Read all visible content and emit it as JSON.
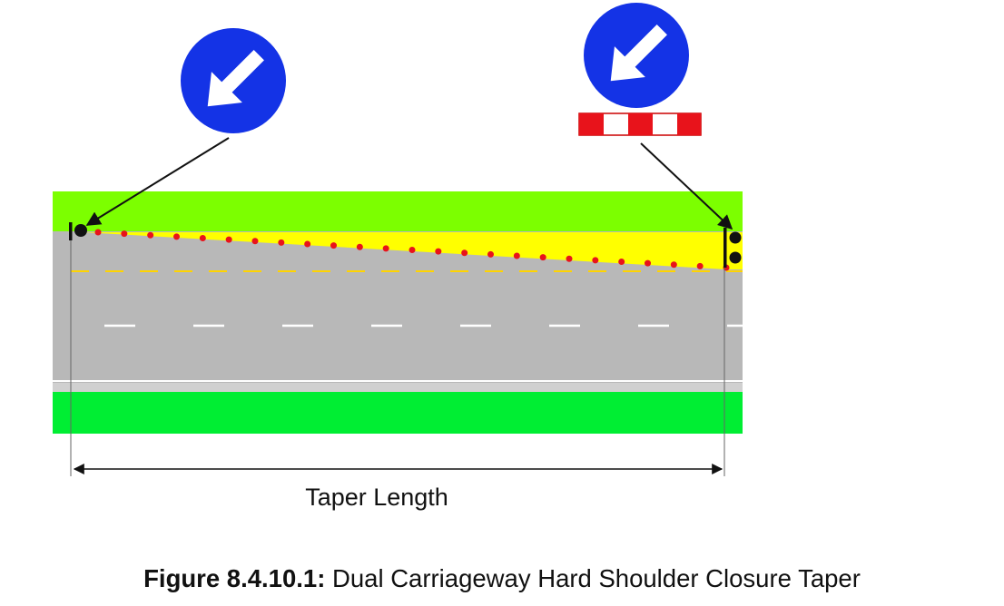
{
  "diagram": {
    "dimension_label": "Taper Length",
    "colors": {
      "verge": "#7cff00",
      "carriageway": "#b8b8b8",
      "hard_shoulder_taper": "#ffff00",
      "cone": "#e8131b",
      "sign_blue": "#1433e6",
      "barrier_red": "#e8131b"
    },
    "signs": [
      {
        "name": "keep-left-arrow-sign",
        "icon": "keep-right-arrow-icon"
      },
      {
        "name": "keep-left-arrow-sign-with-barrier",
        "icon": "keep-right-arrow-icon",
        "plate": "red-white-barrier-plate"
      }
    ]
  },
  "caption": {
    "label": "Figure 8.4.10.1:",
    "text": " Dual Carriageway Hard Shoulder Closure Taper"
  }
}
